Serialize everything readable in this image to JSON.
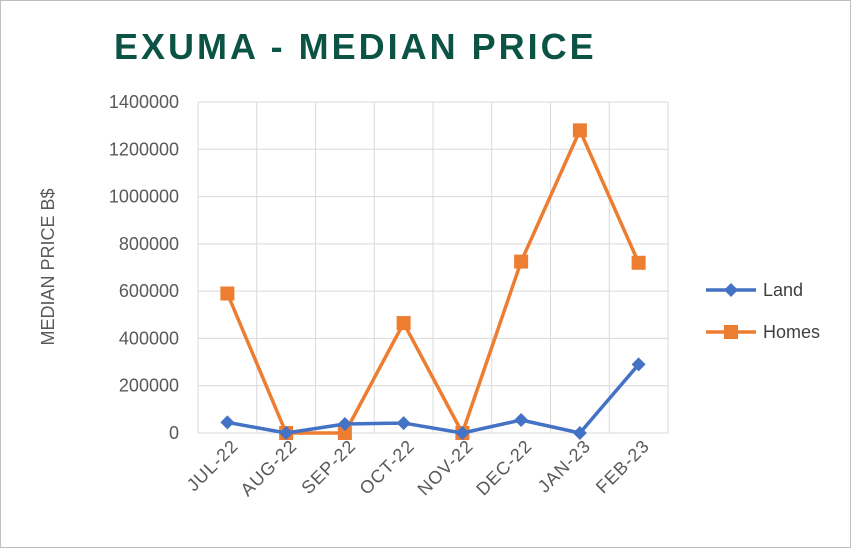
{
  "chart_data": {
    "type": "line",
    "title": "EXUMA - MEDIAN PRICE",
    "xlabel": "",
    "ylabel": "MEDIAN PRICE B$",
    "categories": [
      "JUL-22",
      "AUG-22",
      "SEP-22",
      "OCT-22",
      "NOV-22",
      "DEC-22",
      "JAN-23",
      "FEB-23"
    ],
    "ylim": [
      0,
      1400000
    ],
    "yticks": [
      "0",
      "200000",
      "400000",
      "600000",
      "800000",
      "1000000",
      "1200000",
      "1400000"
    ],
    "grid": true,
    "legend_position": "right",
    "series": [
      {
        "name": "Land",
        "color": "#4472c4",
        "marker": "diamond",
        "values": [
          45000,
          0,
          38000,
          42000,
          0,
          55000,
          0,
          290000
        ]
      },
      {
        "name": "Homes",
        "color": "#ed7d31",
        "marker": "square",
        "values": [
          590000,
          0,
          0,
          465000,
          0,
          725000,
          1280000,
          720000
        ]
      }
    ]
  }
}
